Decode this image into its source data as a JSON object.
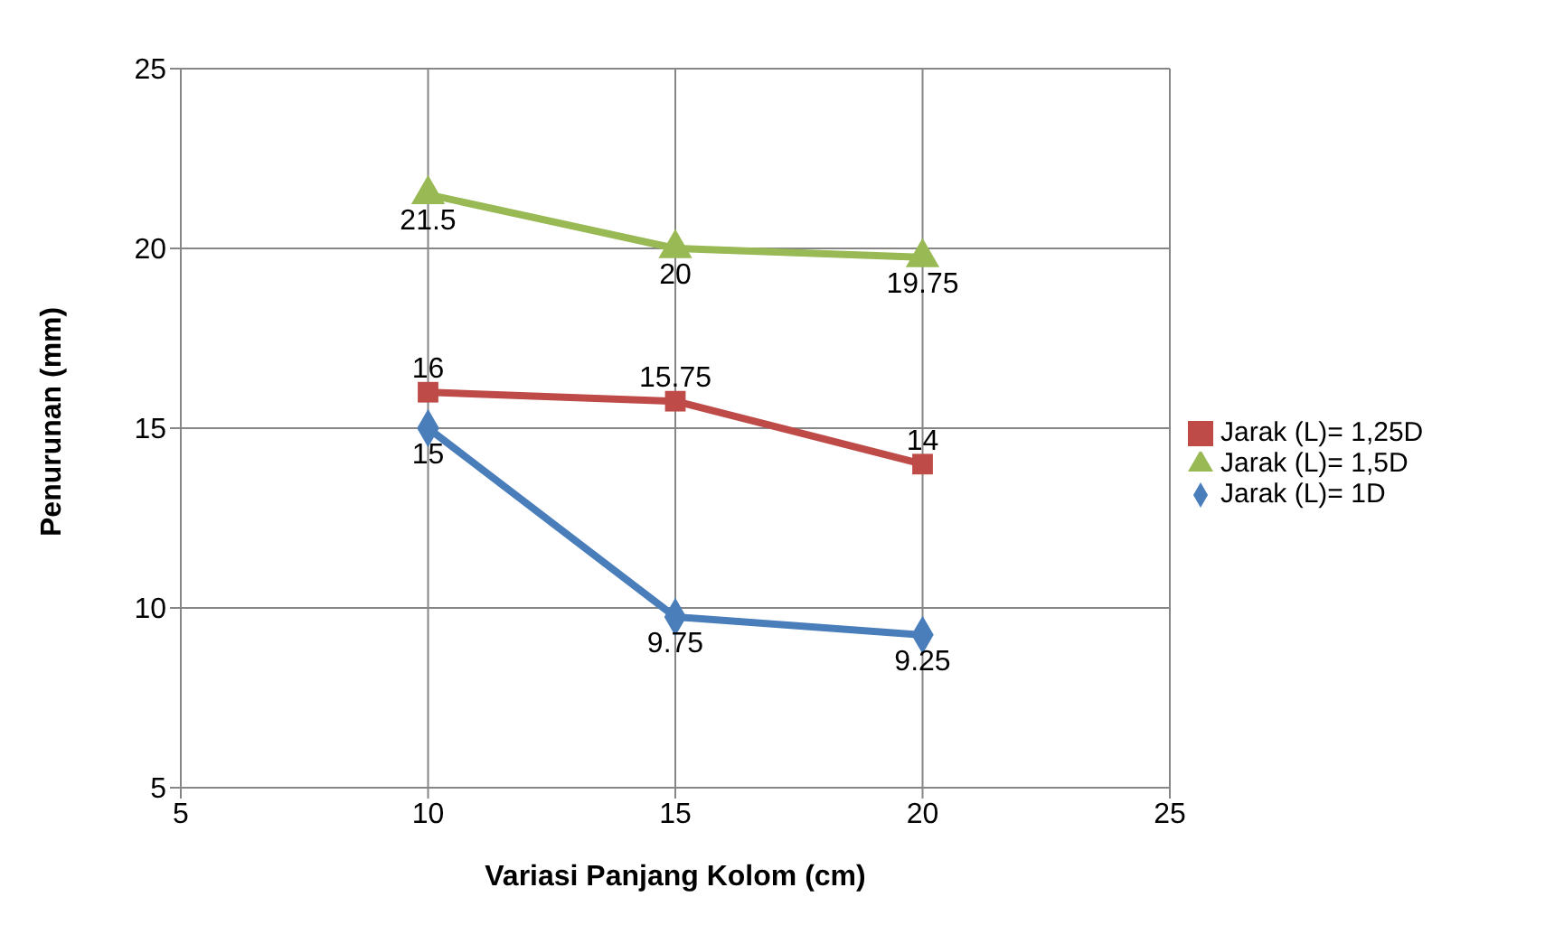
{
  "chart_data": {
    "type": "line",
    "xlabel": "Variasi Panjang Kolom (cm)",
    "ylabel": "Penurunan (mm)",
    "x": [
      10,
      15,
      20
    ],
    "series": [
      {
        "name": "Jarak (L)= 1D",
        "color": "#4a7ebb",
        "values": [
          15,
          9.75,
          9.25
        ],
        "marker": "diamond"
      },
      {
        "name": "Jarak (L)= 1,25D",
        "color": "#be4b48",
        "values": [
          16,
          15.75,
          14
        ],
        "marker": "square"
      },
      {
        "name": "Jarak (L)= 1,5D",
        "color": "#98b954",
        "values": [
          21.5,
          20,
          19.75
        ],
        "marker": "triangle"
      }
    ],
    "xlim": [
      5,
      25
    ],
    "xticks": [
      5,
      10,
      15,
      20,
      25
    ],
    "ylim": [
      5,
      25
    ],
    "yticks": [
      5,
      10,
      15,
      20,
      25
    ],
    "grid": true,
    "legend": "right",
    "data_labels": true,
    "line_style": "solid"
  }
}
